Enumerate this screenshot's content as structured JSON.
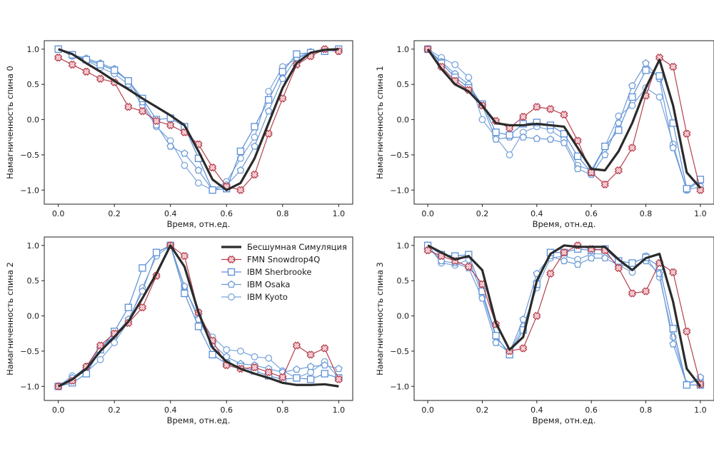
{
  "colors": {
    "noiseless": "#2b2b2b",
    "fmn": "#b5404e",
    "ibm_sherbrooke": "#5b8fd6",
    "ibm_osaka": "#6d9bd8",
    "ibm_kyoto": "#7aa5dc"
  },
  "legend": [
    {
      "label": "Бесшумная Симуляция",
      "style": "thick-line"
    },
    {
      "label": "FMN Snowdrop4Q",
      "style": "cross"
    },
    {
      "label": "IBM Sherbrooke",
      "style": "square"
    },
    {
      "label": "IBM Osaka",
      "style": "pentagon"
    },
    {
      "label": "IBM Kyoto",
      "style": "circle"
    }
  ],
  "chart_data": [
    {
      "type": "line",
      "xlabel": "Время, отн.ед.",
      "ylabel": "Намагниченность спина 0",
      "xlim": [
        -0.05,
        1.05
      ],
      "ylim": [
        -1.2,
        1.12
      ],
      "xticks": [
        0.0,
        0.2,
        0.4,
        0.6,
        0.8,
        1.0
      ],
      "xtick_labels": [
        "0.0",
        "0.2",
        "0.4",
        "0.6",
        "0.8",
        "1.0"
      ],
      "yticks": [
        1.0,
        0.5,
        0.0,
        -0.5,
        -1.0
      ],
      "ytick_labels": [
        "1.0",
        "0.5",
        "0.0",
        "−0.5",
        "−1.0"
      ],
      "x": [
        0.0,
        0.05,
        0.1,
        0.15,
        0.2,
        0.25,
        0.3,
        0.35,
        0.4,
        0.45,
        0.5,
        0.55,
        0.6,
        0.65,
        0.7,
        0.75,
        0.8,
        0.85,
        0.9,
        0.95,
        1.0
      ],
      "series": [
        {
          "name": "Бесшумная Симуляция",
          "marker": "none",
          "values": [
            1.0,
            0.93,
            0.8,
            0.68,
            0.55,
            0.43,
            0.3,
            0.18,
            0.06,
            -0.08,
            -0.45,
            -0.85,
            -1.0,
            -0.9,
            -0.55,
            -0.05,
            0.45,
            0.8,
            0.95,
            0.99,
            1.0
          ]
        },
        {
          "name": "FMN Snowdrop4Q",
          "marker": "cross",
          "values": [
            0.88,
            0.78,
            0.68,
            0.58,
            0.53,
            0.18,
            0.12,
            -0.02,
            -0.08,
            -0.18,
            -0.35,
            -0.68,
            -0.95,
            -1.0,
            -0.78,
            -0.2,
            0.3,
            0.78,
            0.9,
            1.0,
            0.97
          ]
        },
        {
          "name": "IBM Sherbrooke",
          "marker": "square",
          "values": [
            1.0,
            0.92,
            0.85,
            0.78,
            0.7,
            0.55,
            0.3,
            0.0,
            0.02,
            -0.1,
            -0.55,
            -1.0,
            -0.98,
            -0.45,
            -0.1,
            0.28,
            0.68,
            0.93,
            0.95,
            0.97,
            1.0
          ]
        },
        {
          "name": "IBM Osaka",
          "marker": "pentagon",
          "values": [
            1.0,
            0.92,
            0.87,
            0.8,
            0.72,
            0.55,
            0.25,
            -0.08,
            -0.38,
            -0.48,
            -0.72,
            -1.0,
            -0.93,
            -0.72,
            -0.38,
            0.12,
            0.58,
            0.88,
            0.96,
            0.98,
            0.99
          ]
        },
        {
          "name": "IBM Kyoto",
          "marker": "circle",
          "values": [
            1.0,
            0.9,
            0.84,
            0.74,
            0.65,
            0.5,
            0.2,
            -0.1,
            -0.3,
            -0.65,
            -0.9,
            -1.0,
            -0.88,
            -0.55,
            -0.25,
            0.4,
            0.75,
            0.86,
            0.95,
            0.98,
            0.97
          ]
        }
      ]
    },
    {
      "type": "line",
      "xlabel": "Время, отн.ед.",
      "ylabel": "Намагниченность спина 1",
      "xlim": [
        -0.05,
        1.05
      ],
      "ylim": [
        -1.2,
        1.12
      ],
      "xticks": [
        0.0,
        0.2,
        0.4,
        0.6,
        0.8,
        1.0
      ],
      "xtick_labels": [
        "0.0",
        "0.2",
        "0.4",
        "0.6",
        "0.8",
        "1.0"
      ],
      "yticks": [
        1.0,
        0.5,
        0.0,
        -0.5,
        -1.0
      ],
      "ytick_labels": [
        "1.0",
        "0.5",
        "0.0",
        "−0.5",
        "−1.0"
      ],
      "x": [
        0.0,
        0.05,
        0.1,
        0.15,
        0.2,
        0.25,
        0.3,
        0.35,
        0.4,
        0.45,
        0.5,
        0.55,
        0.6,
        0.65,
        0.7,
        0.75,
        0.8,
        0.85,
        0.9,
        0.95,
        1.0
      ],
      "series": [
        {
          "name": "Бесшумная Симуляция",
          "marker": "none",
          "values": [
            1.0,
            0.72,
            0.5,
            0.4,
            0.2,
            -0.05,
            -0.08,
            -0.08,
            -0.06,
            -0.08,
            -0.1,
            -0.4,
            -0.7,
            -0.72,
            -0.45,
            -0.05,
            0.45,
            0.85,
            0.2,
            -0.75,
            -0.97
          ]
        },
        {
          "name": "FMN Snowdrop4Q",
          "marker": "cross",
          "values": [
            1.0,
            0.75,
            0.55,
            0.42,
            0.2,
            -0.02,
            -0.12,
            0.04,
            0.18,
            0.15,
            0.07,
            -0.3,
            -0.75,
            -0.92,
            -0.72,
            -0.4,
            0.34,
            0.88,
            0.75,
            -0.2,
            -1.0
          ]
        },
        {
          "name": "IBM Sherbrooke",
          "marker": "square",
          "values": [
            1.0,
            0.8,
            0.6,
            0.45,
            0.22,
            -0.18,
            -0.22,
            -0.06,
            -0.04,
            -0.08,
            -0.2,
            -0.52,
            -0.75,
            -0.38,
            -0.15,
            0.32,
            0.7,
            0.62,
            -0.05,
            -0.98,
            -0.85
          ]
        },
        {
          "name": "IBM Osaka",
          "marker": "pentagon",
          "values": [
            1.0,
            0.82,
            0.65,
            0.5,
            0.2,
            -0.28,
            -0.25,
            -0.25,
            -0.27,
            -0.28,
            -0.33,
            -0.7,
            -0.78,
            -0.5,
            -0.05,
            0.48,
            0.8,
            0.58,
            -0.4,
            -1.0,
            -0.87
          ]
        },
        {
          "name": "IBM Kyoto",
          "marker": "circle",
          "values": [
            1.0,
            0.88,
            0.78,
            0.6,
            0.0,
            -0.25,
            -0.5,
            -0.18,
            -0.1,
            -0.15,
            -0.28,
            -0.65,
            -0.72,
            -0.38,
            0.05,
            0.2,
            0.45,
            0.32,
            -0.35,
            -1.0,
            -0.95
          ]
        }
      ]
    },
    {
      "type": "line",
      "xlabel": "Время, отн.ед.",
      "ylabel": "Намагниченность спина 2",
      "xlim": [
        -0.05,
        1.05
      ],
      "ylim": [
        -1.2,
        1.12
      ],
      "xticks": [
        0.0,
        0.2,
        0.4,
        0.6,
        0.8,
        1.0
      ],
      "xtick_labels": [
        "0.0",
        "0.2",
        "0.4",
        "0.6",
        "0.8",
        "1.0"
      ],
      "yticks": [
        1.0,
        0.5,
        0.0,
        -0.5,
        -1.0
      ],
      "ytick_labels": [
        "1.0",
        "0.5",
        "0.0",
        "−0.5",
        "−1.0"
      ],
      "x": [
        0.0,
        0.05,
        0.1,
        0.15,
        0.2,
        0.25,
        0.3,
        0.35,
        0.4,
        0.45,
        0.5,
        0.55,
        0.6,
        0.65,
        0.7,
        0.75,
        0.8,
        0.85,
        0.9,
        0.95,
        1.0
      ],
      "series": [
        {
          "name": "Бесшумная Симуляция",
          "marker": "none",
          "values": [
            -1.0,
            -0.9,
            -0.75,
            -0.5,
            -0.3,
            -0.08,
            0.25,
            0.6,
            1.0,
            0.7,
            0.05,
            -0.45,
            -0.65,
            -0.75,
            -0.82,
            -0.88,
            -0.95,
            -0.98,
            -0.98,
            -0.97,
            -1.0
          ]
        },
        {
          "name": "FMN Snowdrop4Q",
          "marker": "cross",
          "values": [
            -1.0,
            -0.92,
            -0.72,
            -0.42,
            -0.25,
            -0.1,
            0.12,
            0.57,
            1.0,
            0.85,
            0.05,
            -0.35,
            -0.7,
            -0.75,
            -0.73,
            -0.8,
            -0.87,
            -0.42,
            -0.55,
            -0.46,
            -0.9
          ]
        },
        {
          "name": "IBM Sherbrooke",
          "marker": "square",
          "values": [
            -1.0,
            -0.95,
            -0.82,
            -0.48,
            -0.22,
            0.12,
            0.68,
            0.9,
            1.0,
            0.32,
            -0.15,
            -0.55,
            -0.68,
            -0.72,
            -0.78,
            -0.85,
            -0.9,
            -0.88,
            -0.9,
            -0.82,
            -0.88
          ]
        },
        {
          "name": "IBM Osaka",
          "marker": "pentagon",
          "values": [
            -1.0,
            -0.88,
            -0.72,
            -0.45,
            -0.28,
            -0.05,
            0.35,
            0.9,
            1.0,
            0.42,
            -0.05,
            -0.4,
            -0.58,
            -0.68,
            -0.7,
            -0.75,
            -0.8,
            -0.76,
            -0.72,
            -0.7,
            -0.75
          ]
        },
        {
          "name": "IBM Kyoto",
          "marker": "circle",
          "values": [
            -1.0,
            -0.85,
            -0.8,
            -0.62,
            -0.38,
            -0.08,
            0.4,
            0.85,
            1.0,
            0.4,
            0.0,
            -0.3,
            -0.48,
            -0.5,
            -0.58,
            -0.6,
            -0.78,
            -0.88,
            -0.8,
            -0.65,
            -0.88
          ]
        }
      ]
    },
    {
      "type": "line",
      "xlabel": "Время, отн.ед.",
      "ylabel": "Намагниченность спина 3",
      "xlim": [
        -0.05,
        1.05
      ],
      "ylim": [
        -1.2,
        1.12
      ],
      "xticks": [
        0.0,
        0.2,
        0.4,
        0.6,
        0.8,
        1.0
      ],
      "xtick_labels": [
        "0.0",
        "0.2",
        "0.4",
        "0.6",
        "0.8",
        "1.0"
      ],
      "yticks": [
        1.0,
        0.5,
        0.0,
        -0.5,
        -1.0
      ],
      "ytick_labels": [
        "1.0",
        "0.5",
        "0.0",
        "−0.5",
        "−1.0"
      ],
      "x": [
        0.0,
        0.05,
        0.1,
        0.15,
        0.2,
        0.25,
        0.3,
        0.35,
        0.4,
        0.45,
        0.5,
        0.55,
        0.6,
        0.65,
        0.7,
        0.75,
        0.8,
        0.85,
        0.9,
        0.95,
        1.0
      ],
      "series": [
        {
          "name": "Бесшумная Симуляция",
          "marker": "none",
          "values": [
            1.0,
            0.9,
            0.8,
            0.85,
            0.65,
            -0.1,
            -0.48,
            -0.3,
            0.5,
            0.88,
            1.0,
            0.98,
            0.98,
            0.98,
            0.8,
            0.65,
            0.82,
            0.88,
            0.2,
            -0.75,
            -1.0
          ]
        },
        {
          "name": "FMN Snowdrop4Q",
          "marker": "cross",
          "values": [
            0.93,
            0.85,
            0.78,
            0.7,
            0.45,
            -0.12,
            -0.5,
            -0.46,
            0.0,
            0.6,
            0.9,
            1.0,
            0.95,
            0.93,
            0.68,
            0.32,
            0.35,
            0.75,
            0.62,
            -0.22,
            -0.97
          ]
        },
        {
          "name": "IBM Sherbrooke",
          "marker": "square",
          "values": [
            1.0,
            0.87,
            0.85,
            0.87,
            0.35,
            -0.28,
            -0.55,
            -0.2,
            0.45,
            0.9,
            0.9,
            0.95,
            0.93,
            0.95,
            0.78,
            0.75,
            0.83,
            0.7,
            -0.18,
            -0.98,
            -0.98
          ]
        },
        {
          "name": "IBM Osaka",
          "marker": "pentagon",
          "values": [
            1.0,
            0.78,
            0.75,
            0.68,
            0.25,
            -0.38,
            -0.52,
            -0.05,
            0.6,
            0.85,
            0.78,
            0.73,
            0.82,
            0.82,
            0.72,
            0.7,
            0.78,
            0.6,
            -0.4,
            -0.97,
            -0.87
          ]
        },
        {
          "name": "IBM Kyoto",
          "marker": "circle",
          "values": [
            1.0,
            0.75,
            0.72,
            0.8,
            0.3,
            -0.3,
            -0.52,
            -0.15,
            0.4,
            0.82,
            0.85,
            0.8,
            0.88,
            0.88,
            0.72,
            0.62,
            0.85,
            0.55,
            -0.3,
            -0.97,
            -0.9
          ]
        }
      ]
    }
  ]
}
